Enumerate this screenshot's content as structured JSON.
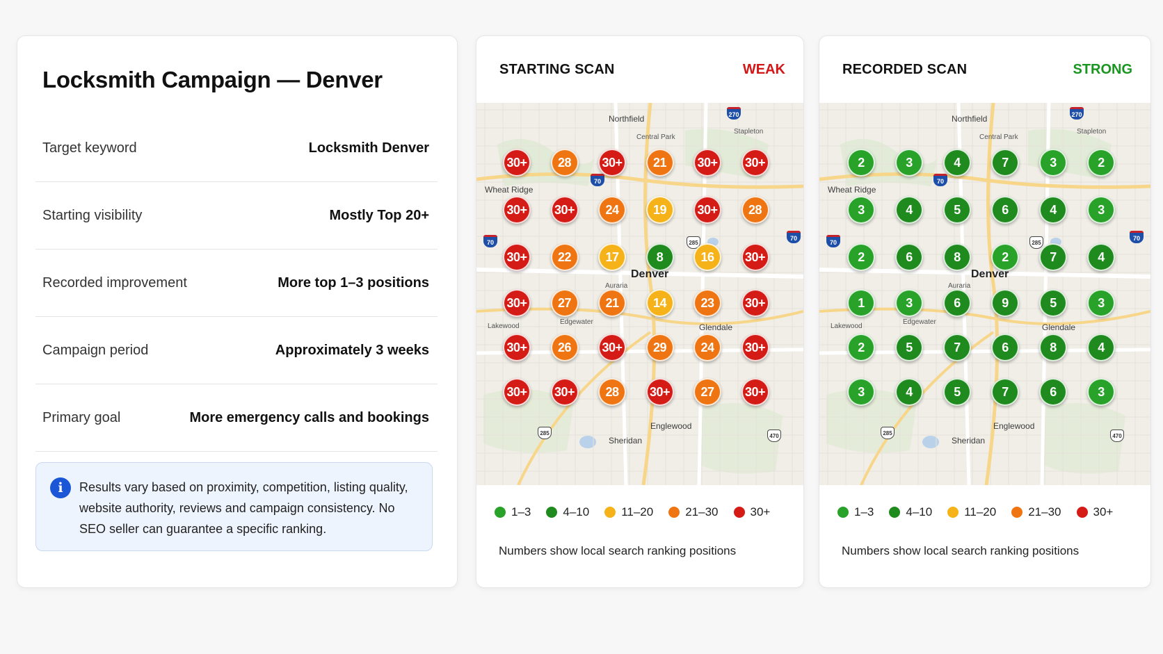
{
  "summary": {
    "title": "Locksmith Campaign — Denver",
    "rows": [
      {
        "label": "Target keyword",
        "value": "Locksmith Denver"
      },
      {
        "label": "Starting visibility",
        "value": "Mostly Top 20+"
      },
      {
        "label": "Recorded improvement",
        "value": "More top 1–3 positions"
      },
      {
        "label": "Campaign period",
        "value": "Approximately 3 weeks"
      },
      {
        "label": "Primary goal",
        "value": "More emergency calls and bookings"
      }
    ],
    "notice": "Results vary based on proximity, competition, listing quality, website authority, reviews and campaign consistency. No SEO seller can guarantee a specific ranking."
  },
  "colors": {
    "top_1_3": "#28a228",
    "top_4_10": "#1f8a1e",
    "top_11_20": "#f6b219",
    "top_21_30": "#ef7512",
    "top_30_plus": "#d41b16"
  },
  "map_labels": {
    "northfield": "Northfield",
    "central_park": "Central Park",
    "stapleton": "Stapleton",
    "wheat_ridge": "Wheat Ridge",
    "denver": "Denver",
    "auraria": "Auraria",
    "lakewood": "Lakewood",
    "edgewater": "Edgewater",
    "glendale": "Glendale",
    "englewood": "Englewood",
    "sheridan": "Sheridan"
  },
  "scans": [
    {
      "title": "STARTING SCAN",
      "status": "WEAK",
      "grid": [
        [
          "30+",
          "28",
          "30+",
          "21",
          "30+",
          "30+"
        ],
        [
          "30+",
          "30+",
          "24",
          "19",
          "30+",
          "28"
        ],
        [
          "30+",
          "22",
          "17",
          "8",
          "16",
          "30+"
        ],
        [
          "30+",
          "27",
          "21",
          "14",
          "23",
          "30+"
        ],
        [
          "30+",
          "26",
          "30+",
          "29",
          "24",
          "30+"
        ],
        [
          "30+",
          "30+",
          "28",
          "30+",
          "27",
          "30+"
        ]
      ],
      "legend": [
        "1–3",
        "4–10",
        "11–20",
        "21–30",
        "30+"
      ],
      "note": "Numbers show local search ranking positions"
    },
    {
      "title": "RECORDED SCAN",
      "status": "STRONG",
      "grid": [
        [
          "2",
          "3",
          "4",
          "7",
          "3",
          "2"
        ],
        [
          "3",
          "4",
          "5",
          "6",
          "4",
          "3"
        ],
        [
          "2",
          "6",
          "8",
          "2",
          "7",
          "4"
        ],
        [
          "1",
          "3",
          "6",
          "9",
          "5",
          "3"
        ],
        [
          "2",
          "5",
          "7",
          "6",
          "8",
          "4"
        ],
        [
          "3",
          "4",
          "5",
          "7",
          "6",
          "3"
        ]
      ],
      "legend": [
        "1–3",
        "4–10",
        "11–20",
        "21–30",
        "30+"
      ],
      "note": "Numbers show local search ranking positions"
    }
  ]
}
